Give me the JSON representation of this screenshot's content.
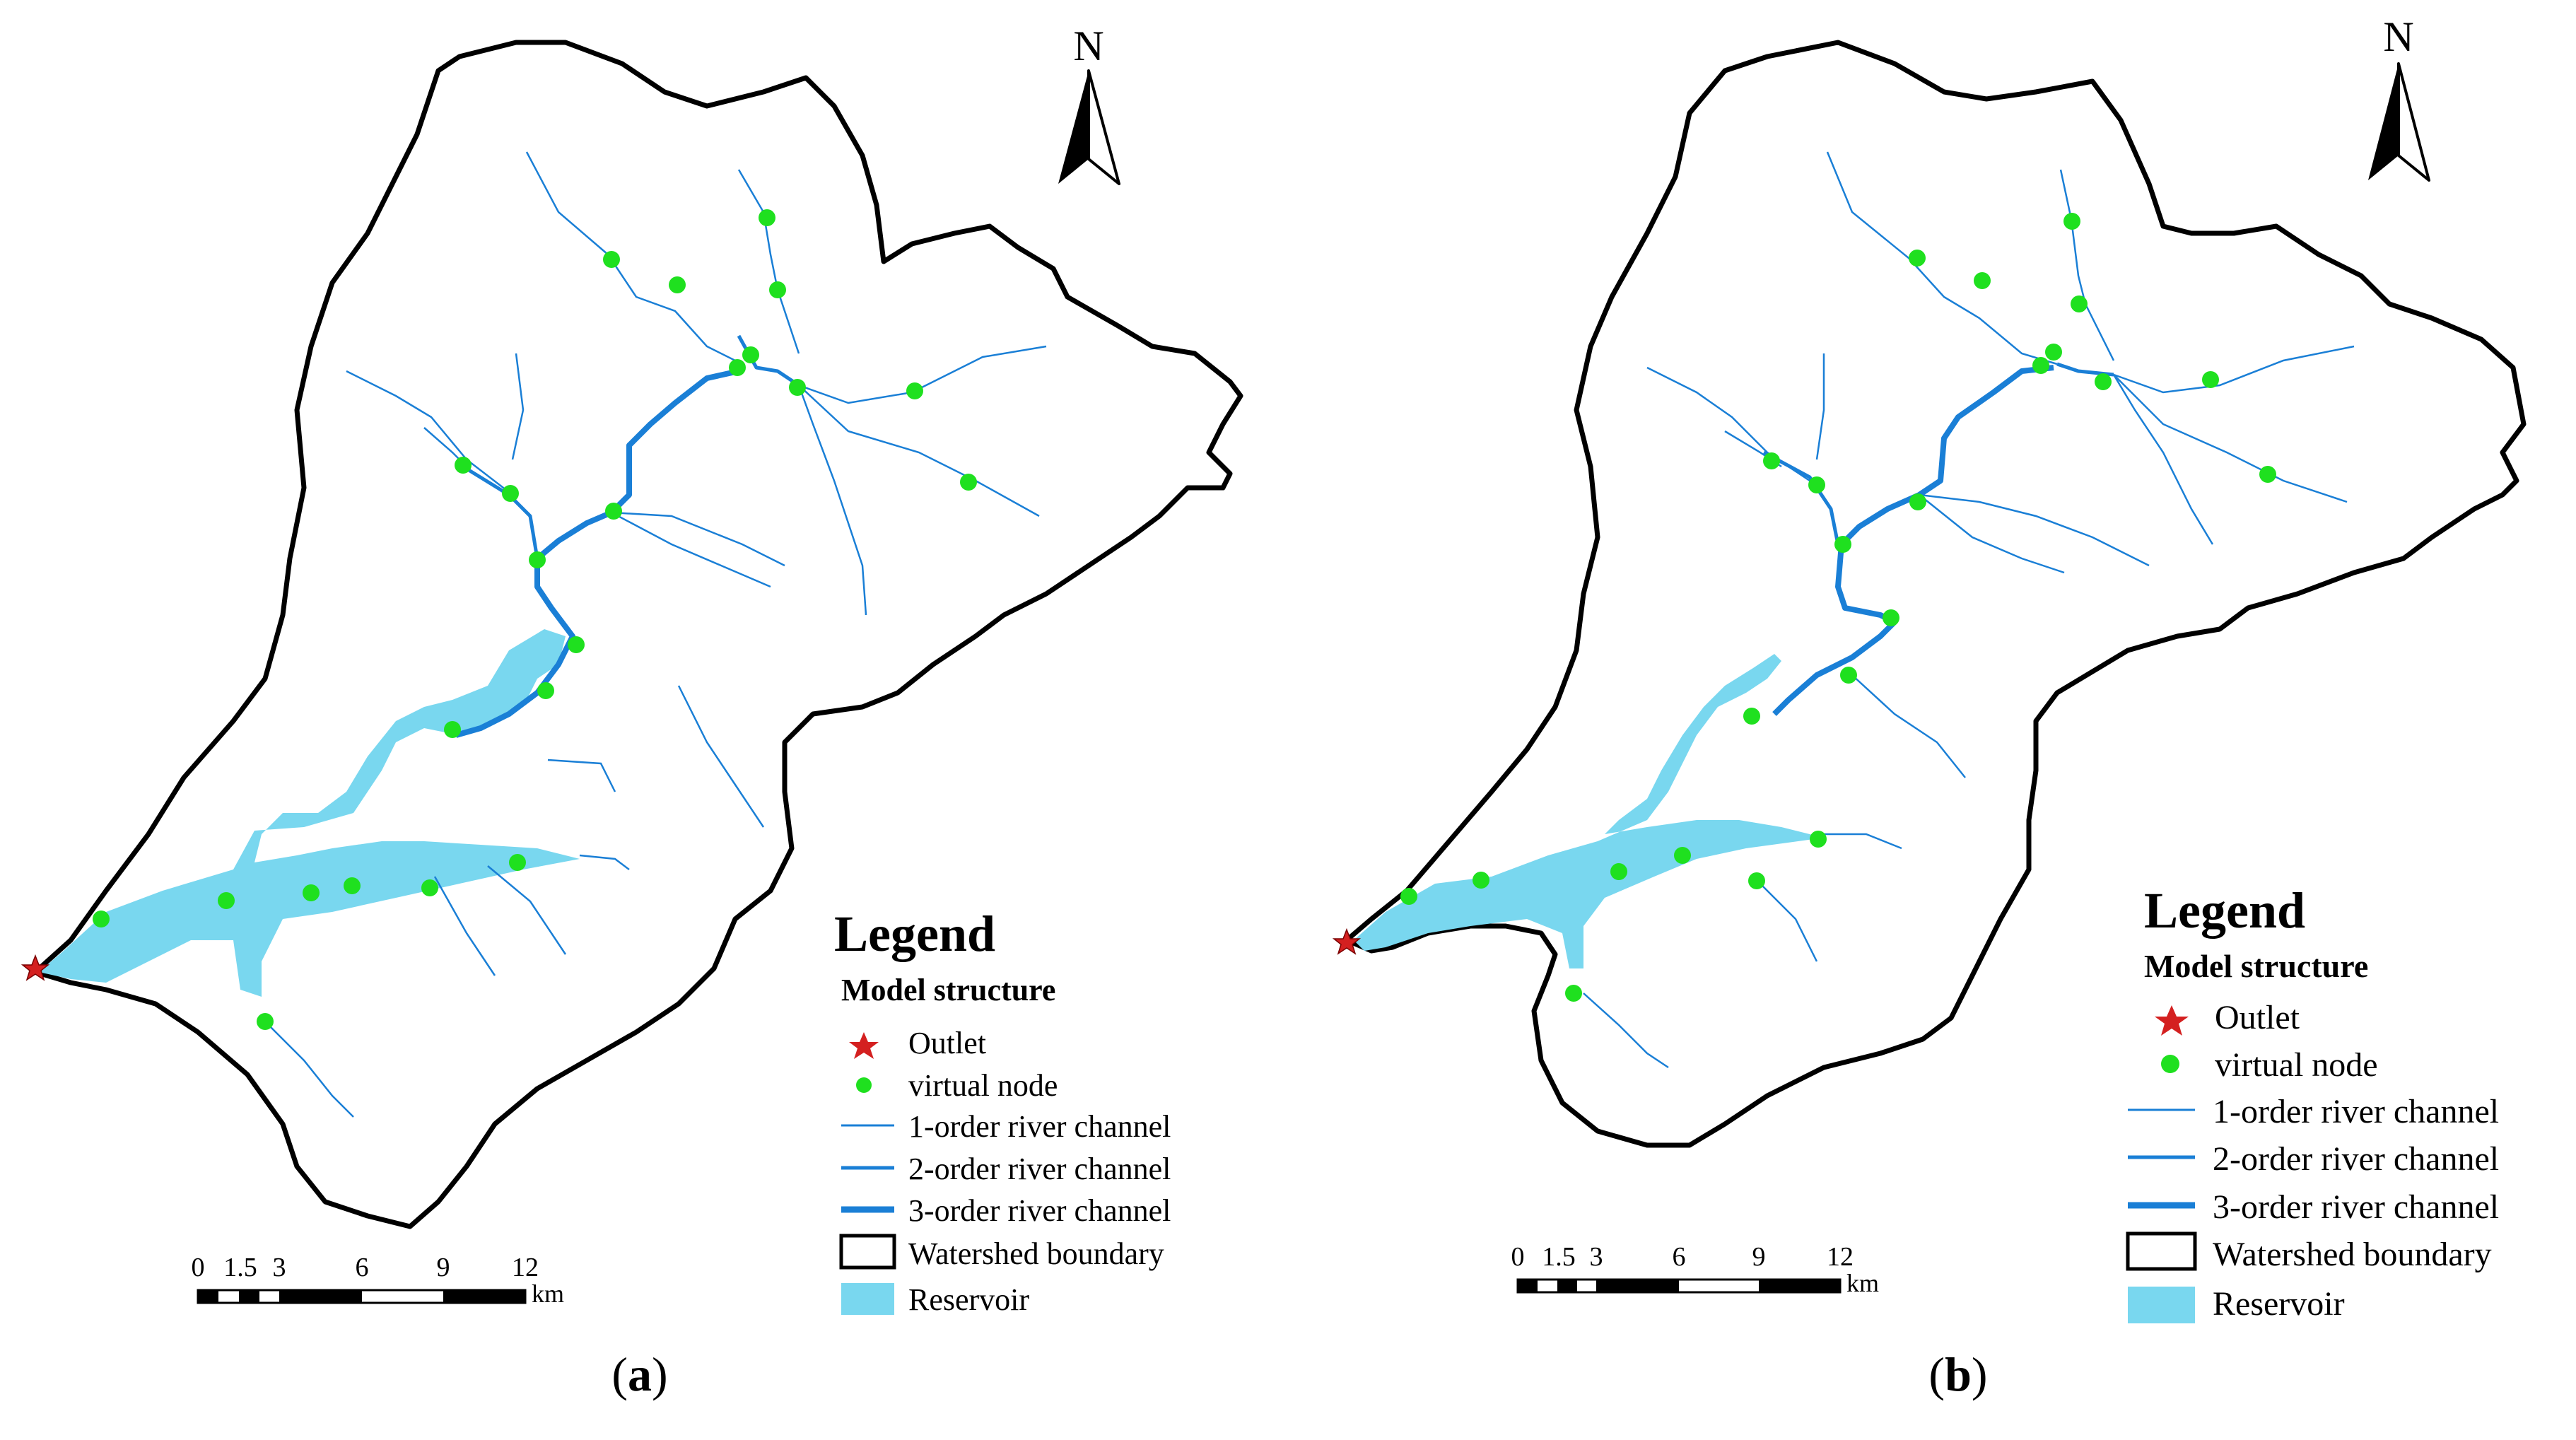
{
  "panels": [
    {
      "legend": {
        "title": "Legend",
        "subtitle": "Model structure",
        "items": [
          {
            "label": "Outlet",
            "symbol": "star",
            "color": "#d42020"
          },
          {
            "label": "virtual node",
            "symbol": "dot",
            "color": "#1fe01f"
          },
          {
            "label": "1-order river channel",
            "symbol": "line-thin",
            "color": "#1a7fd6"
          },
          {
            "label": "2-order river channel",
            "symbol": "line-medium",
            "color": "#1a7fd6"
          },
          {
            "label": "3-order river channel",
            "symbol": "line-thick",
            "color": "#1a7fd6"
          },
          {
            "label": "Watershed boundary",
            "symbol": "box-outline",
            "color": "#000000"
          },
          {
            "label": "Reservoir",
            "symbol": "box-fill",
            "color": "#79d7ef"
          }
        ]
      },
      "north_label": "N",
      "scale_bar": {
        "ticks": [
          "0",
          "1.5",
          "3",
          "6",
          "9",
          "12"
        ],
        "unit": "km"
      },
      "caption": {
        "open": "(",
        "letter": "a",
        "close": ")"
      }
    },
    {
      "legend": {
        "title": "Legend",
        "subtitle": "Model structure",
        "items": [
          {
            "label": "Outlet",
            "symbol": "star",
            "color": "#d42020"
          },
          {
            "label": "virtual node",
            "symbol": "dot",
            "color": "#1fe01f"
          },
          {
            "label": "1-order river channel",
            "symbol": "line-thin",
            "color": "#1a7fd6"
          },
          {
            "label": "2-order river channel",
            "symbol": "line-medium",
            "color": "#1a7fd6"
          },
          {
            "label": "3-order river channel",
            "symbol": "line-thick",
            "color": "#1a7fd6"
          },
          {
            "label": "Watershed boundary",
            "symbol": "box-outline",
            "color": "#000000"
          },
          {
            "label": "Reservoir",
            "symbol": "box-fill",
            "color": "#79d7ef"
          }
        ]
      },
      "north_label": "N",
      "scale_bar": {
        "ticks": [
          "0",
          "1.5",
          "3",
          "6",
          "9",
          "12"
        ],
        "unit": "km"
      },
      "caption": {
        "open": "(",
        "letter": "b",
        "close": ")"
      }
    }
  ],
  "colors": {
    "boundary": "#000000",
    "river": "#1a7fd6",
    "reservoir": "#79d7ef",
    "node": "#1fe01f",
    "outlet": "#d42020"
  }
}
